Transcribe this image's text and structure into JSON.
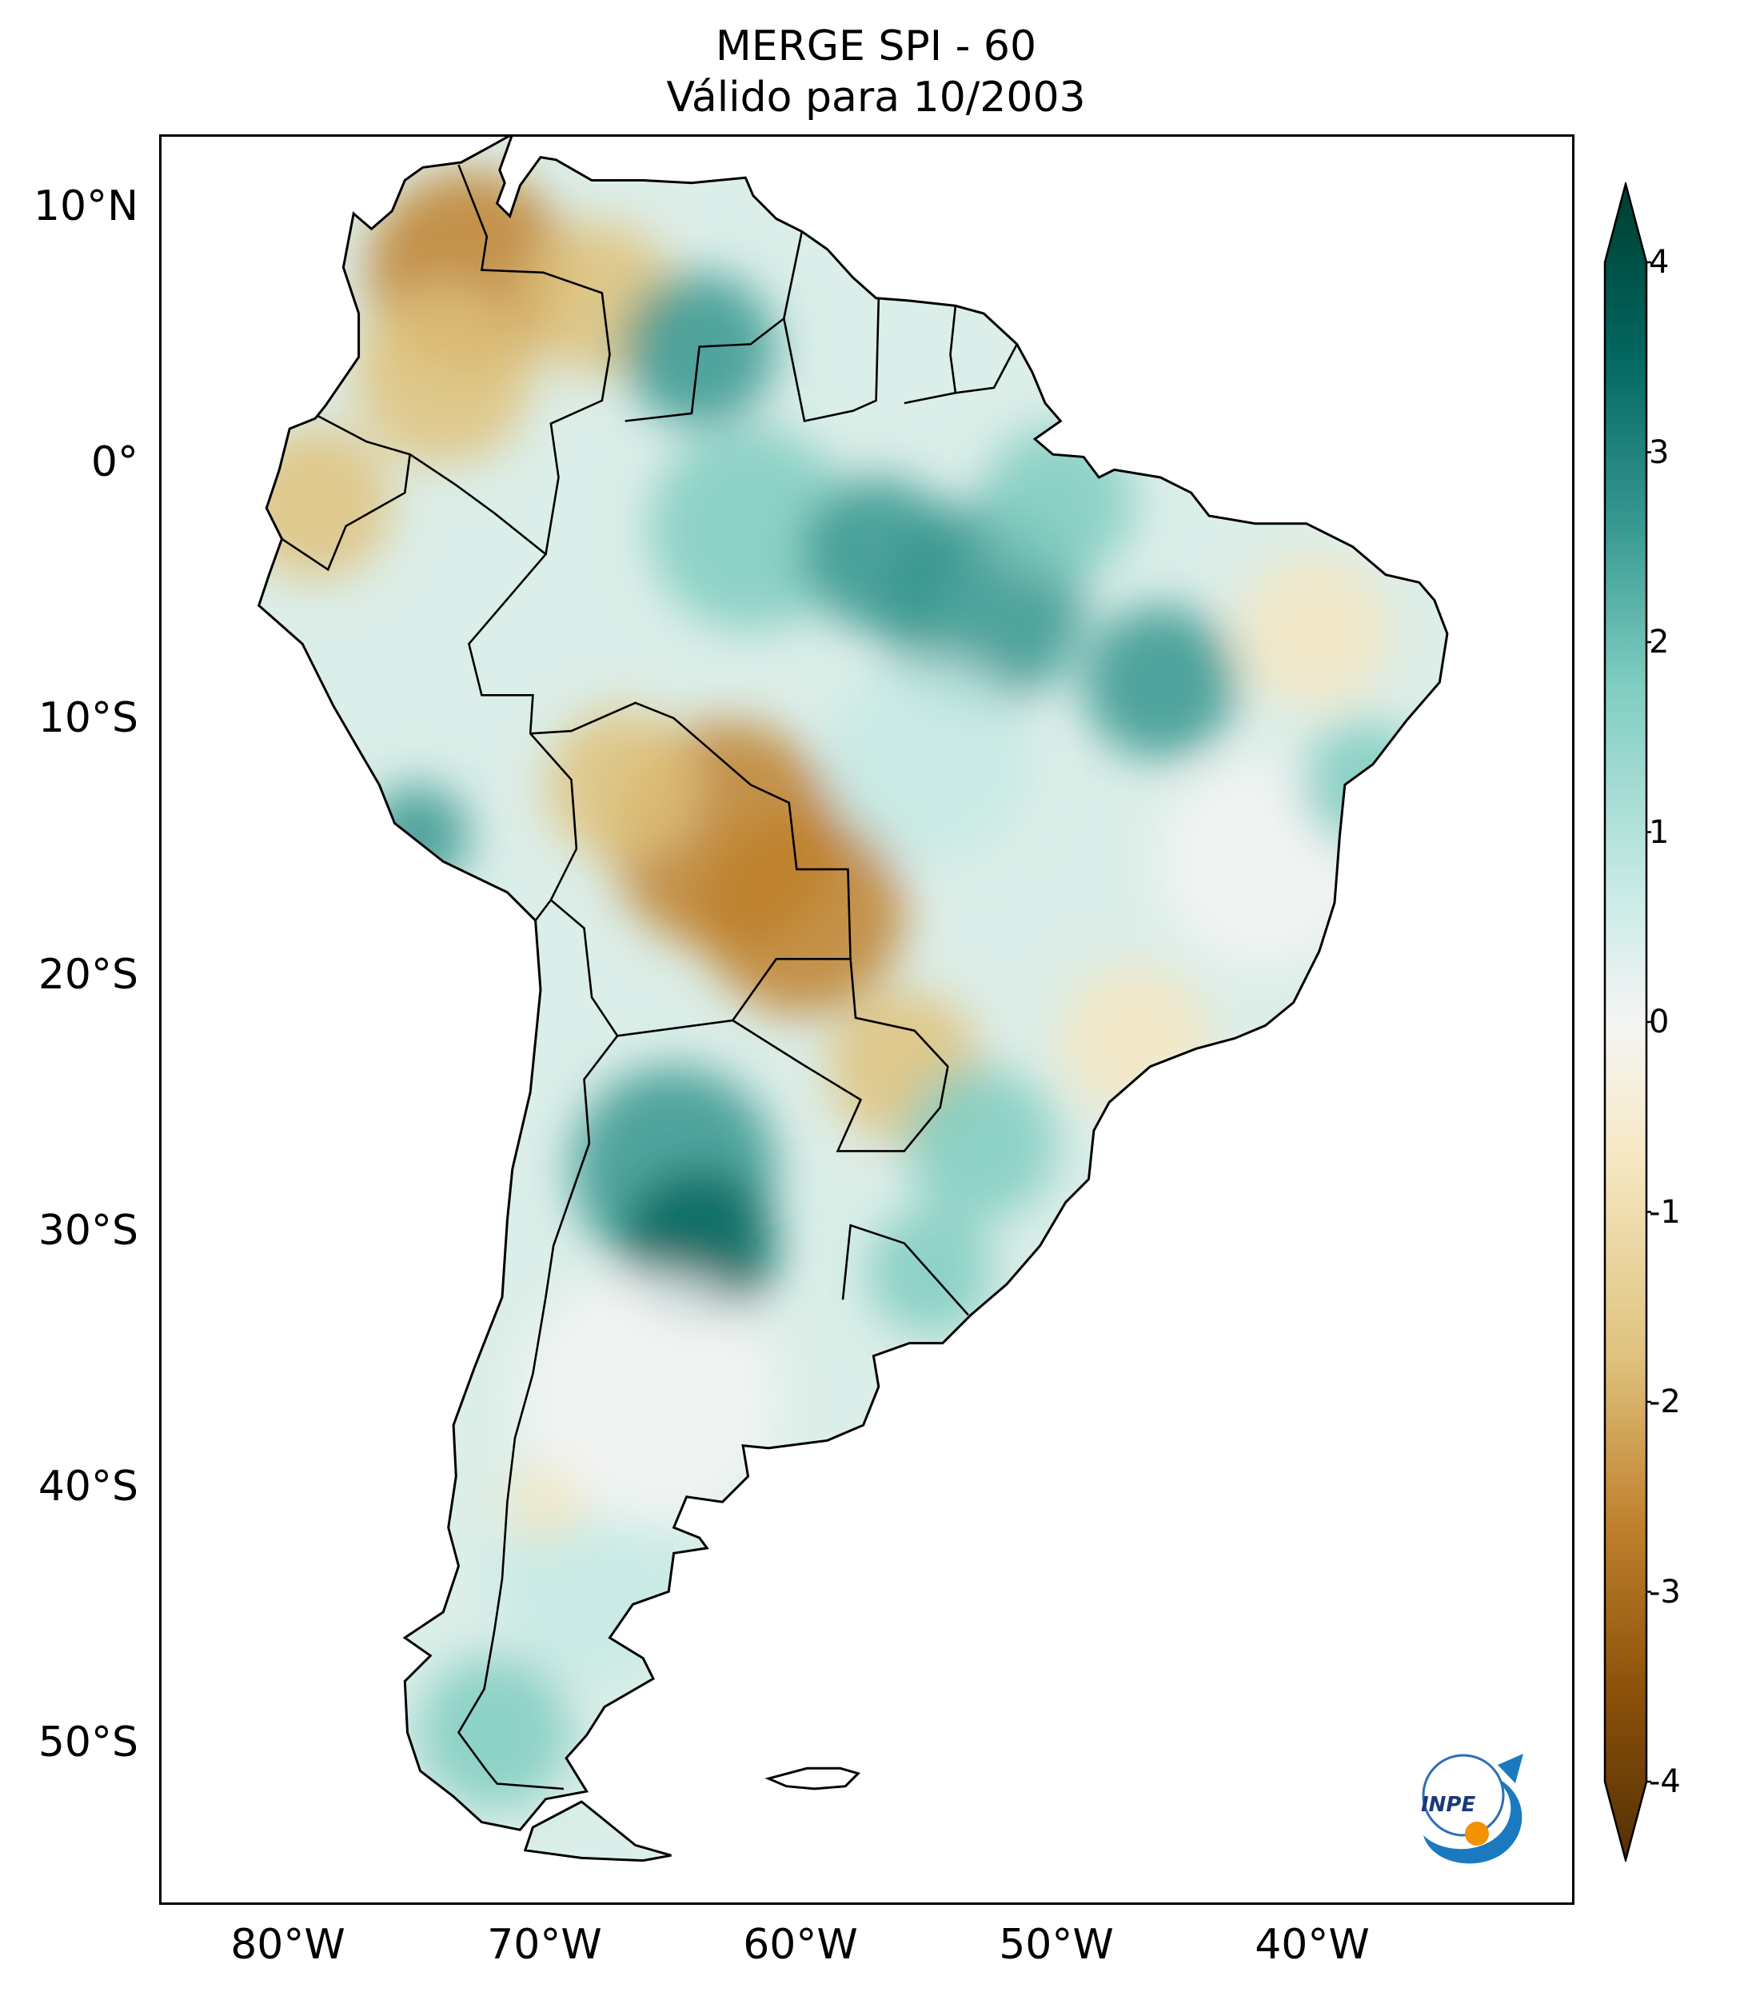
{
  "title": {
    "line1": "MERGE   SPI - 60",
    "line2": "Válido para 10/2003"
  },
  "axes": {
    "latitude_labels": [
      "10°N",
      "0°",
      "10°S",
      "20°S",
      "30°S",
      "40°S",
      "50°S"
    ],
    "longitude_labels": [
      "80°W",
      "70°W",
      "60°W",
      "50°W",
      "40°W"
    ]
  },
  "colorbar": {
    "ticks": [
      "4",
      "3",
      "2",
      "1",
      "0",
      "-1",
      "-2",
      "-3",
      "-4"
    ],
    "colors": {
      "dry_extreme": "#543005",
      "dry_strong": "#8c510a",
      "dry_moderate": "#bf812d",
      "dry_mild": "#dfc27d",
      "dry_slight": "#f6e8c3",
      "neutral": "#f5f5f5",
      "wet_slight": "#c7eae5",
      "wet_mild": "#80cdc1",
      "wet_moderate": "#35978f",
      "wet_strong": "#01665e",
      "wet_extreme": "#003c30"
    }
  },
  "logo": {
    "text": "INPE"
  }
}
